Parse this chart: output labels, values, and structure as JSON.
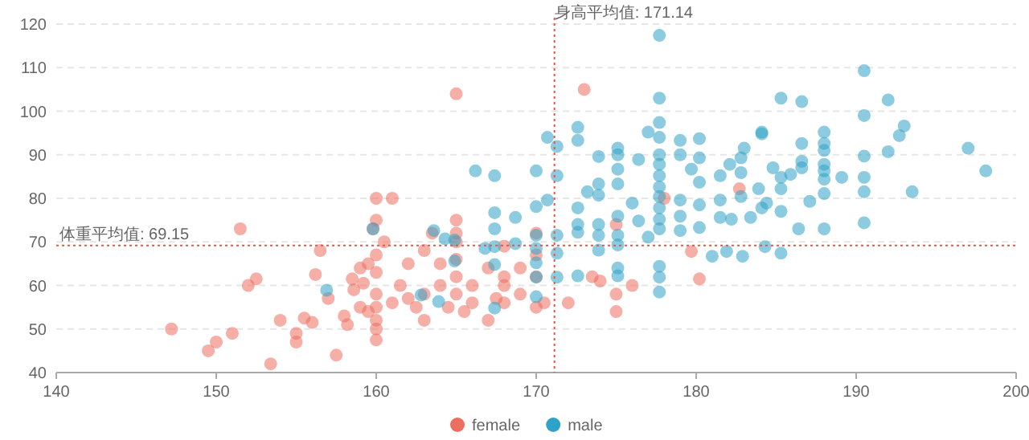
{
  "chart_data": {
    "type": "scatter",
    "xlim": [
      140,
      200
    ],
    "ylim": [
      40,
      120
    ],
    "xticks": [
      140,
      150,
      160,
      170,
      180,
      190,
      200
    ],
    "yticks": [
      40,
      50,
      60,
      70,
      80,
      90,
      100,
      110,
      120
    ],
    "grid": "y",
    "legend": "bottom",
    "marker": "circle",
    "ref_lines": [
      {
        "axis": "x",
        "value": 171.14,
        "label": "身高平均值: 171.14",
        "color": "#e05a4a",
        "line_style": "dotted"
      },
      {
        "axis": "y",
        "value": 69.15,
        "label": "体重平均值: 69.15",
        "color": "#e05a4a",
        "line_style": "dotted"
      }
    ],
    "series": [
      {
        "name": "female",
        "color": "#ec6e5e",
        "x": [
          147.2,
          149.5,
          150,
          151,
          151.5,
          152,
          152.5,
          153.4,
          154,
          155,
          155,
          155.5,
          156,
          156.2,
          156.5,
          157,
          157.5,
          158,
          158.2,
          158.5,
          158.6,
          159,
          159,
          159.5,
          159.2,
          159.5,
          159.8,
          160,
          160,
          160,
          160,
          160,
          160,
          160,
          160,
          160,
          160.5,
          161,
          161,
          161.5,
          162,
          162,
          162.5,
          163,
          163,
          163,
          163.5,
          164,
          164,
          164.5,
          165,
          165,
          165,
          165,
          165,
          165,
          165,
          165.5,
          166,
          166,
          167,
          167,
          167.5,
          168,
          168,
          168,
          168,
          169,
          169,
          170,
          170,
          170,
          170,
          170.5,
          172,
          173,
          173.5,
          174,
          175,
          175,
          175,
          176,
          178,
          179.7,
          180.2,
          182.7
        ],
        "values": [
          50,
          45,
          47,
          49,
          73,
          60,
          61.5,
          42,
          52,
          49,
          47,
          52.5,
          51.5,
          62.5,
          68,
          57,
          44,
          53,
          51,
          61.5,
          59,
          55,
          64,
          65,
          60.5,
          54,
          73,
          47.5,
          50,
          55,
          58,
          63,
          67,
          75,
          80,
          52,
          70,
          80,
          56,
          60,
          65,
          57,
          55,
          58,
          68,
          52,
          72,
          60,
          65,
          55,
          58,
          62,
          66,
          70,
          72,
          75,
          104,
          54,
          60,
          56,
          52,
          64,
          57,
          56,
          60,
          62,
          69,
          64,
          58,
          62,
          67,
          72,
          55,
          56,
          56,
          105,
          62,
          61,
          58,
          54,
          74,
          60,
          80,
          67.8,
          61.5,
          82.2
        ]
      },
      {
        "name": "male",
        "color": "#2fa3c7",
        "x": [
          190.5,
          185.3,
          186.6,
          192,
          190.5,
          193,
          192.7,
          197,
          198.1,
          193.5,
          192,
          190.5,
          190.5,
          190.5,
          190.5,
          188,
          188,
          188,
          188,
          188,
          188,
          188,
          188,
          189.1,
          187.1,
          186.4,
          186.6,
          186.6,
          186.6,
          185.9,
          185.3,
          185.3,
          185.3,
          185.3,
          184.8,
          184.1,
          184.1,
          184.3,
          183.9,
          184.1,
          184.4,
          183.4,
          183,
          182.8,
          182.8,
          182.8,
          182.9,
          182.1,
          181.5,
          181.5,
          181.5,
          181.9,
          181,
          182.2,
          180.2,
          180.2,
          180.2,
          180.2,
          180.2,
          179,
          179,
          179,
          179,
          179,
          179.7,
          177.7,
          177.7,
          177.7,
          177.7,
          177.7,
          177.7,
          177.7,
          177.7,
          177.7,
          177.7,
          177.7,
          177.7,
          177.7,
          177.7,
          177.7,
          175.1,
          175.1,
          175.1,
          175.1,
          175.1,
          175.1,
          175.1,
          175.1,
          175.1,
          173.9,
          173.9,
          173.9,
          173.9,
          173.9,
          173.9,
          172.6,
          172.6,
          172.6,
          172.6,
          172.6,
          172.6,
          171.3,
          171.3,
          171.3,
          171.3,
          171.3,
          170.7,
          170.7,
          170,
          170,
          170,
          170,
          170,
          170,
          170,
          168.7,
          168.7,
          167.4,
          167.4,
          167.4,
          167.4,
          167.4,
          167.4,
          166.2,
          166.8,
          164.9,
          164.9,
          164.3,
          163.6,
          162.8,
          163.9,
          176,
          176.4,
          176.4,
          177,
          177,
          173.2,
          159.8,
          156.9
        ],
        "values": [
          109.3,
          103,
          102.2,
          102.6,
          99,
          96.6,
          94.4,
          91.5,
          86.3,
          81.5,
          90.7,
          89.7,
          84.8,
          81.5,
          74.4,
          95.2,
          92.6,
          91,
          87.8,
          86.3,
          84.4,
          81.1,
          73,
          84.8,
          79.3,
          73,
          92.6,
          88.5,
          87,
          85.5,
          84.8,
          82.2,
          77,
          67.4,
          87,
          95.2,
          94.8,
          68.9,
          82.2,
          77.8,
          78.9,
          75.6,
          91.5,
          89.3,
          85.9,
          80.4,
          66.7,
          87.8,
          85.2,
          79.6,
          75.6,
          67.8,
          66.7,
          75.2,
          93.7,
          89.3,
          83.7,
          78.5,
          73.3,
          93.3,
          79.6,
          75.9,
          72.6,
          90,
          86.7,
          117.4,
          103,
          97.4,
          94,
          90,
          87.8,
          85.2,
          82.6,
          80.4,
          77.8,
          75.2,
          73,
          64.4,
          61.9,
          58.5,
          91.5,
          90,
          86.7,
          83.3,
          75.9,
          71.5,
          69.3,
          64,
          62.2,
          89.6,
          83.3,
          80.7,
          74,
          71.5,
          68.1,
          96.3,
          93.3,
          77.8,
          74,
          72.2,
          62.2,
          91.9,
          85.2,
          71.5,
          67.4,
          61.9,
          94,
          79.6,
          86.3,
          78.1,
          71.5,
          68.5,
          65.2,
          61.9,
          57.4,
          75.6,
          69.6,
          85.2,
          76.7,
          73,
          68.9,
          64.8,
          54.8,
          86.3,
          68.5,
          70.4,
          65.6,
          70.7,
          72.6,
          57.8,
          56.3,
          78.9,
          88.9,
          74.8,
          95.2,
          71.1,
          81.5,
          73,
          58.9
        ]
      }
    ]
  }
}
